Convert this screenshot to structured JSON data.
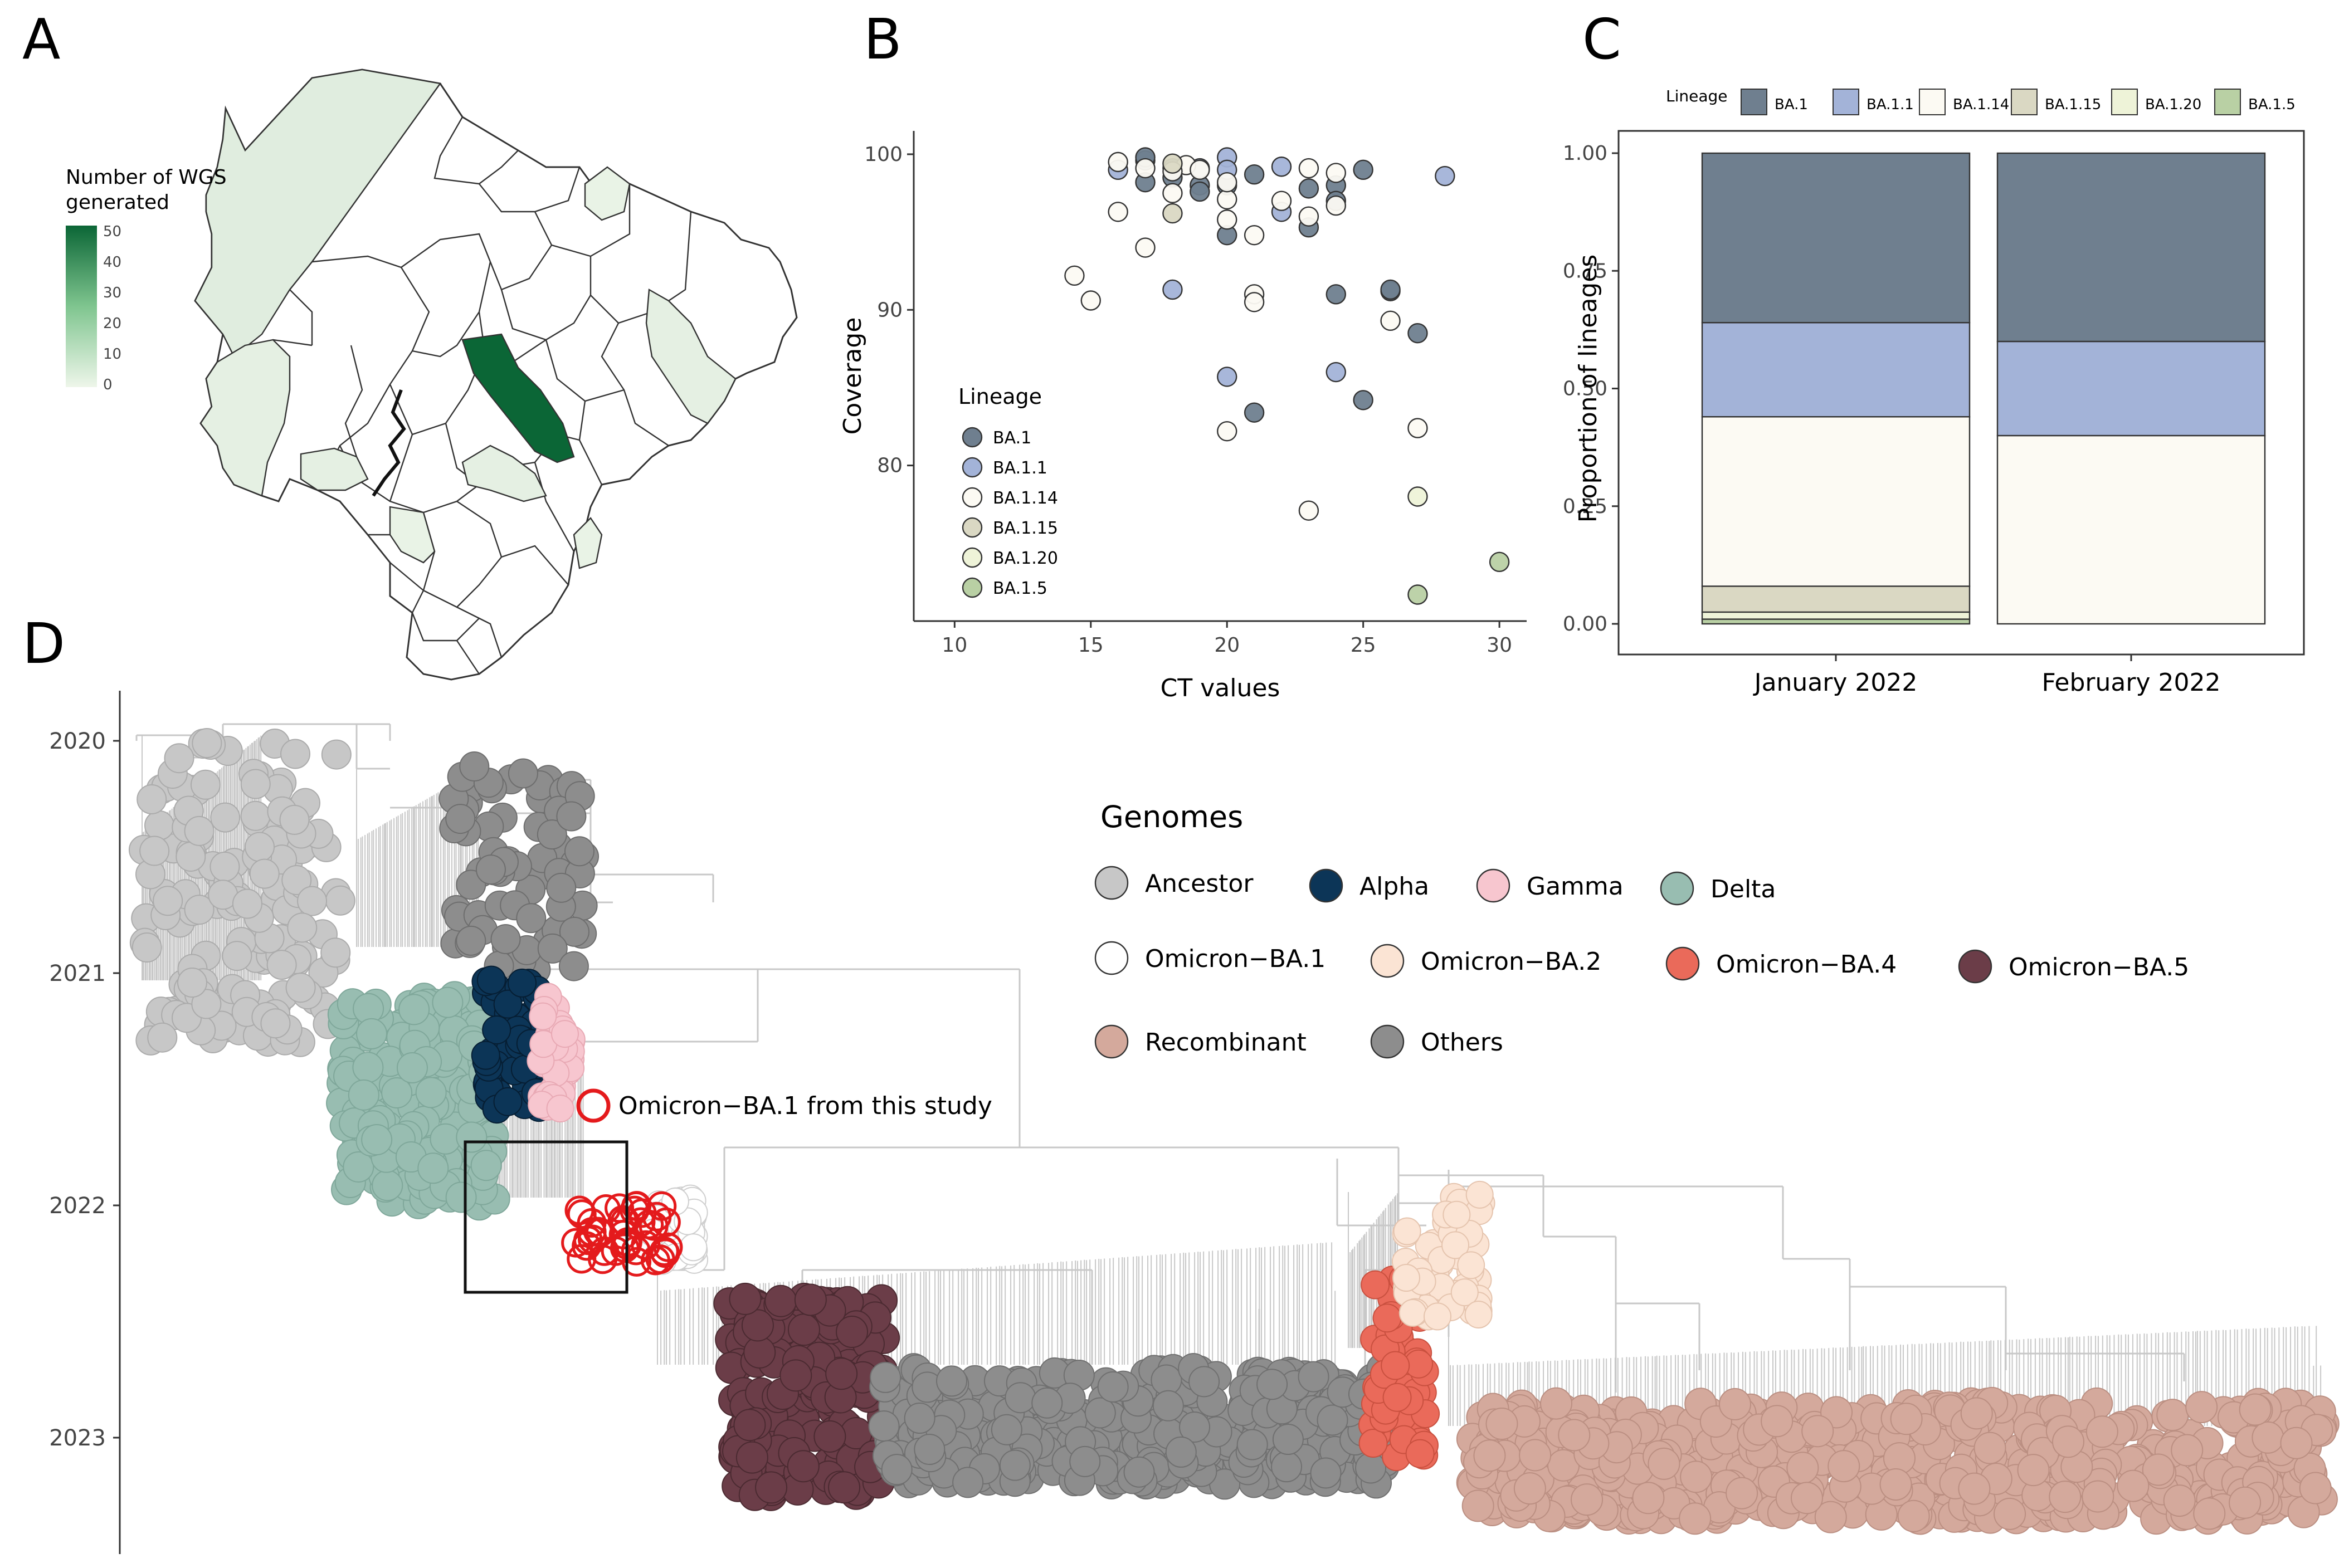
{
  "panels": {
    "a": "A",
    "b": "B",
    "c": "C",
    "d": "D"
  },
  "colors": {
    "BA.1": "#6f7f8f",
    "BA.1.1": "#a3b3d8",
    "BA.1.14": "#fcfaf3",
    "BA.1.15": "#dad8c3",
    "BA.1.20": "#eef3d8",
    "BA.1.5": "#b9d0a4",
    "Ancestor": "#c7c7c7",
    "Alpha": "#0c3557",
    "Gamma": "#f7c6cf",
    "Delta": "#98bdb1",
    "Omicron-BA.1": "#ffffff",
    "Omicron-BA.2": "#fbe4d4",
    "Omicron-BA.4": "#ea6a5a",
    "Omicron-BA.5": "#6b3d48",
    "Recombinant": "#d4a99c",
    "Others": "#8d8d8d",
    "study": "#e41a1c",
    "tree_line": "#c8c8c8"
  },
  "map": {
    "legend_title_line1": "Number of WGS",
    "legend_title_line2": "generated",
    "legend_ticks": [
      "50",
      "40",
      "30",
      "20",
      "10",
      "0"
    ],
    "legend_range": [
      0,
      50
    ],
    "low_color": "#eef6ea",
    "high_color": "#0b6636",
    "highlighted_values": [
      50,
      3,
      2,
      2,
      2,
      2,
      1,
      1,
      1
    ]
  },
  "chart_data": [
    {
      "panel": "B",
      "type": "scatter",
      "xlabel": "CT values",
      "ylabel": "Coverage",
      "xlim": [
        8.5,
        31
      ],
      "ylim": [
        70,
        101.5
      ],
      "xticks": [
        10,
        15,
        20,
        25,
        30
      ],
      "yticks": [
        80,
        90,
        100
      ],
      "legend_title": "Lineage",
      "legend": [
        "BA.1",
        "BA.1.1",
        "BA.1.14",
        "BA.1.15",
        "BA.1.20",
        "BA.1.5"
      ],
      "series": [
        {
          "name": "BA.1",
          "x": [
            17,
            17,
            18,
            19,
            19,
            20,
            20,
            21,
            23,
            23,
            24,
            24,
            24,
            25,
            26,
            26,
            27,
            25,
            21,
            17,
            18
          ],
          "y": [
            99.6,
            98.2,
            99.1,
            98.0,
            97.6,
            94.8,
            98.0,
            98.7,
            97.8,
            95.3,
            98.0,
            97.0,
            91.0,
            99.0,
            91.2,
            91.3,
            88.5,
            84.2,
            83.4,
            99.8,
            98.5
          ]
        },
        {
          "name": "BA.1.1",
          "x": [
            16,
            18,
            19,
            20,
            20,
            22,
            22,
            24,
            28,
            20
          ],
          "y": [
            99.0,
            91.3,
            99.1,
            99.8,
            99.0,
            99.2,
            96.3,
            86.0,
            98.6,
            85.7
          ]
        },
        {
          "name": "BA.1.14",
          "x": [
            14.4,
            15,
            16,
            16,
            17,
            18,
            18.5,
            19,
            20,
            20,
            20,
            21,
            21,
            21,
            22,
            23,
            23,
            24,
            24,
            26,
            27,
            20,
            23,
            17,
            18
          ],
          "y": [
            92.2,
            90.6,
            96.3,
            99.5,
            94.0,
            97.5,
            99.3,
            99.0,
            97.1,
            95.8,
            98.2,
            91.0,
            90.5,
            94.8,
            97.0,
            99.1,
            96.0,
            98.8,
            96.7,
            89.3,
            82.4,
            82.2,
            77.1,
            99.1,
            98.9
          ]
        },
        {
          "name": "BA.1.15",
          "x": [
            18,
            18
          ],
          "y": [
            96.2,
            99.4
          ]
        },
        {
          "name": "BA.1.20",
          "x": [
            27
          ],
          "y": [
            78.0
          ]
        },
        {
          "name": "BA.1.5",
          "x": [
            27,
            30
          ],
          "y": [
            71.7,
            73.8
          ]
        }
      ]
    },
    {
      "panel": "C",
      "type": "bar",
      "stacked": true,
      "categories": [
        "January 2022",
        "February 2022"
      ],
      "ylabel": "Proportion of lineages",
      "ylim": [
        0,
        1
      ],
      "yticks": [
        "0.00",
        "0.25",
        "0.50",
        "0.75",
        "1.00"
      ],
      "legend_title": "Lineage",
      "series": [
        {
          "name": "BA.1.5",
          "values": [
            0.01,
            0.0
          ]
        },
        {
          "name": "BA.1.20",
          "values": [
            0.015,
            0.0
          ]
        },
        {
          "name": "BA.1.15",
          "values": [
            0.055,
            0.0
          ]
        },
        {
          "name": "BA.1.14",
          "values": [
            0.36,
            0.4
          ]
        },
        {
          "name": "BA.1.1",
          "values": [
            0.2,
            0.2
          ]
        },
        {
          "name": "BA.1",
          "values": [
            0.36,
            0.4
          ]
        }
      ]
    },
    {
      "panel": "D",
      "type": "scatter",
      "subtype": "time-scaled phylogeny (tip clusters)",
      "ylim": [
        2019.9,
        2023.5
      ],
      "yticks": [
        "2020",
        "2021",
        "2022",
        "2023"
      ],
      "legend_title": "Genomes",
      "legend": [
        "Ancestor",
        "Alpha",
        "Gamma",
        "Delta",
        "Omicron−BA.1",
        "Omicron−BA.2",
        "Omicron−BA.4",
        "Omicron−BA.5",
        "Recombinant",
        "Others"
      ],
      "annotation": "Omicron−BA.1 from this study",
      "clusters": [
        {
          "name": "Ancestor",
          "x": [
            0.01,
            0.1
          ],
          "t": [
            2020.0,
            2021.3
          ]
        },
        {
          "name": "Others",
          "x": [
            0.15,
            0.21
          ],
          "t": [
            2020.1,
            2021.0
          ]
        },
        {
          "name": "Delta",
          "x": [
            0.1,
            0.17
          ],
          "t": [
            2021.1,
            2022.0
          ]
        },
        {
          "name": "Alpha",
          "x": [
            0.165,
            0.19
          ],
          "t": [
            2021.0,
            2021.6
          ]
        },
        {
          "name": "Gamma",
          "x": [
            0.19,
            0.205
          ],
          "t": [
            2021.1,
            2021.6
          ]
        },
        {
          "name": "Omicron-BA.1",
          "x": [
            0.24,
            0.26
          ],
          "t": [
            2021.95,
            2022.25
          ]
        },
        {
          "name": "Study",
          "x": [
            0.205,
            0.25
          ],
          "t": [
            2022.0,
            2022.25
          ]
        },
        {
          "name": "Omicron-BA.5",
          "x": [
            0.275,
            0.345
          ],
          "t": [
            2022.4,
            2023.25
          ]
        },
        {
          "name": "Others",
          "x": [
            0.345,
            0.575
          ],
          "t": [
            2022.7,
            2023.2
          ]
        },
        {
          "name": "Omicron-BA.4",
          "x": [
            0.565,
            0.59
          ],
          "t": [
            2022.2,
            2023.1
          ]
        },
        {
          "name": "Omicron-BA.2",
          "x": [
            0.58,
            0.615
          ],
          "t": [
            2021.95,
            2022.5
          ]
        },
        {
          "name": "Recombinant",
          "x": [
            0.61,
            0.995
          ],
          "t": [
            2022.85,
            2023.35
          ]
        }
      ]
    }
  ]
}
